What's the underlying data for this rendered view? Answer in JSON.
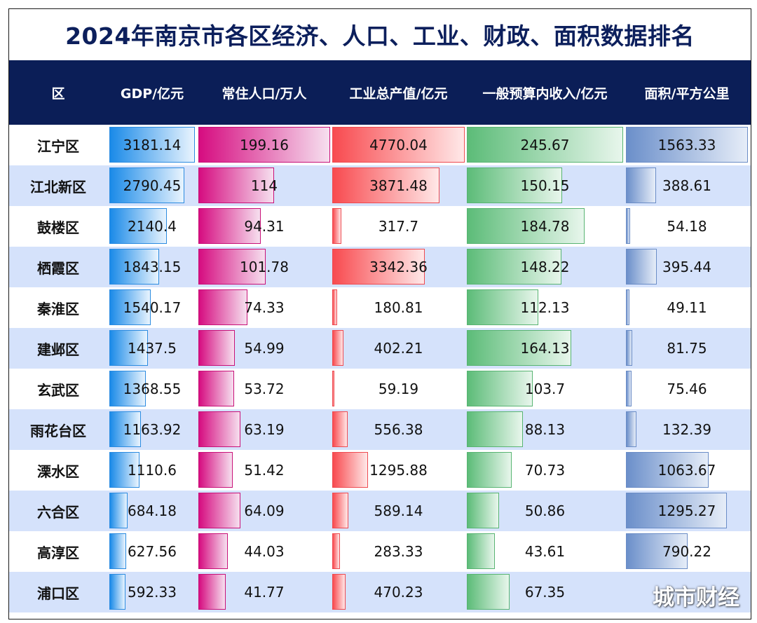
{
  "chart_data": {
    "type": "table",
    "title": "2024年南京市各区经济、人口、工业、财政、面积数据排名",
    "columns": [
      "区",
      "GDP/亿元",
      "常住人口/万人",
      "工业总产值/亿元",
      "一般预算内收入/亿元",
      "面积/平方公里"
    ],
    "categories": [
      "江宁区",
      "江北新区",
      "鼓楼区",
      "栖霞区",
      "秦淮区",
      "建邺区",
      "玄武区",
      "雨花台区",
      "溧水区",
      "六合区",
      "高淳区",
      "浦口区"
    ],
    "series": [
      {
        "name": "GDP/亿元",
        "values": [
          3181.14,
          2790.45,
          2140.4,
          1843.15,
          1540.17,
          1437.5,
          1368.55,
          1163.92,
          1110.6,
          684.18,
          627.56,
          592.33
        ],
        "display": [
          "3181.14",
          "2790.45",
          "2140.4",
          "1843.15",
          "1540.17",
          "1437.5",
          "1368.55",
          "1163.92",
          "1110.6",
          "684.18",
          "627.56",
          "592.33"
        ],
        "color": "#1a8ae8"
      },
      {
        "name": "常住人口/万人",
        "values": [
          199.16,
          114,
          94.31,
          101.78,
          74.33,
          54.99,
          53.72,
          63.19,
          51.42,
          64.09,
          44.03,
          41.77
        ],
        "display": [
          "199.16",
          "114",
          "94.31",
          "101.78",
          "74.33",
          "54.99",
          "53.72",
          "63.19",
          "51.42",
          "64.09",
          "44.03",
          "41.77"
        ],
        "color": "#d60c80"
      },
      {
        "name": "工业总产值/亿元",
        "values": [
          4770.04,
          3871.48,
          317.7,
          3342.36,
          180.81,
          402.21,
          59.19,
          556.38,
          1295.88,
          589.14,
          283.33,
          470.23
        ],
        "display": [
          "4770.04",
          "3871.48",
          "317.7",
          "3342.36",
          "180.81",
          "402.21",
          "59.19",
          "556.38",
          "1295.88",
          "589.14",
          "283.33",
          "470.23"
        ],
        "color": "#f84a4f"
      },
      {
        "name": "一般预算内收入/亿元",
        "values": [
          245.67,
          150.15,
          184.78,
          148.22,
          112.13,
          164.13,
          103.7,
          88.13,
          70.73,
          50.86,
          43.61,
          67.35
        ],
        "display": [
          "245.67",
          "150.15",
          "184.78",
          "148.22",
          "112.13",
          "164.13",
          "103.7",
          "88.13",
          "70.73",
          "50.86",
          "43.61",
          "67.35"
        ],
        "color": "#5cbc78"
      },
      {
        "name": "面积/平方公里",
        "values": [
          1563.33,
          388.61,
          54.18,
          395.44,
          49.11,
          81.75,
          75.46,
          132.39,
          1063.67,
          1295.27,
          790.22,
          null
        ],
        "display": [
          "1563.33",
          "388.61",
          "54.18",
          "395.44",
          "49.11",
          "81.75",
          "75.46",
          "132.39",
          "1063.67",
          "1295.27",
          "790.22",
          ""
        ],
        "color": "#6b8fca"
      }
    ],
    "grid": false,
    "legend": "none"
  },
  "watermark": "城市财经"
}
